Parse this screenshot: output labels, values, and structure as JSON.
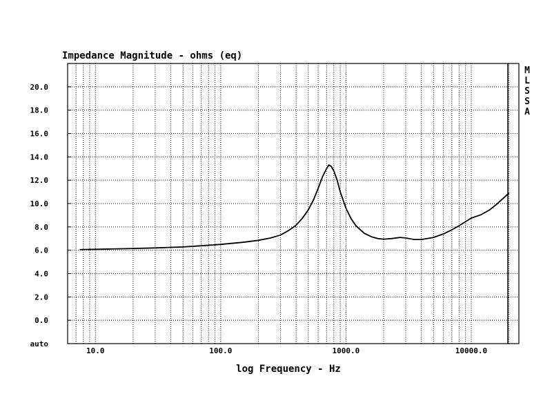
{
  "chart_data": {
    "type": "line",
    "title": "Impedance Magnitude - ohms (eq)",
    "xlabel": "log Frequency - Hz",
    "ylabel": "",
    "x_scale": "log",
    "xlim": [
      6.0,
      24000
    ],
    "ylim": [
      -2.0,
      22.0
    ],
    "grid": true,
    "y_ticks": [
      {
        "value": -2.0,
        "label": "auto"
      },
      {
        "value": 0.0,
        "label": "0.0"
      },
      {
        "value": 2.0,
        "label": "2.0"
      },
      {
        "value": 4.0,
        "label": "4.0"
      },
      {
        "value": 6.0,
        "label": "6.0"
      },
      {
        "value": 8.0,
        "label": "8.0"
      },
      {
        "value": 10.0,
        "label": "10.0"
      },
      {
        "value": 12.0,
        "label": "12.0"
      },
      {
        "value": 14.0,
        "label": "14.0"
      },
      {
        "value": 16.0,
        "label": "16.0"
      },
      {
        "value": 18.0,
        "label": "18.0"
      },
      {
        "value": 20.0,
        "label": "20.0"
      }
    ],
    "x_ticks": [
      {
        "value": 10,
        "label": "10.0"
      },
      {
        "value": 100,
        "label": "100.0"
      },
      {
        "value": 1000,
        "label": "1000.0"
      },
      {
        "value": 10000,
        "label": "10000.0"
      }
    ],
    "side_letters": [
      "M",
      "L",
      "S",
      "S",
      "A"
    ],
    "series": [
      {
        "color": "#000000",
        "points": [
          [
            7.5,
            6.05
          ],
          [
            10,
            6.08
          ],
          [
            15,
            6.12
          ],
          [
            20,
            6.15
          ],
          [
            30,
            6.2
          ],
          [
            50,
            6.28
          ],
          [
            70,
            6.38
          ],
          [
            100,
            6.5
          ],
          [
            150,
            6.68
          ],
          [
            200,
            6.85
          ],
          [
            250,
            7.05
          ],
          [
            300,
            7.3
          ],
          [
            350,
            7.7
          ],
          [
            400,
            8.15
          ],
          [
            450,
            8.75
          ],
          [
            500,
            9.45
          ],
          [
            550,
            10.3
          ],
          [
            600,
            11.3
          ],
          [
            650,
            12.3
          ],
          [
            700,
            13.0
          ],
          [
            730,
            13.3
          ],
          [
            760,
            13.2
          ],
          [
            800,
            12.8
          ],
          [
            850,
            12.0
          ],
          [
            900,
            11.0
          ],
          [
            1000,
            9.6
          ],
          [
            1100,
            8.7
          ],
          [
            1200,
            8.1
          ],
          [
            1400,
            7.45
          ],
          [
            1600,
            7.15
          ],
          [
            1800,
            7.0
          ],
          [
            2000,
            6.95
          ],
          [
            2300,
            7.0
          ],
          [
            2700,
            7.1
          ],
          [
            3000,
            7.05
          ],
          [
            3500,
            6.92
          ],
          [
            4000,
            6.92
          ],
          [
            5000,
            7.1
          ],
          [
            6000,
            7.4
          ],
          [
            7000,
            7.75
          ],
          [
            8000,
            8.1
          ],
          [
            9000,
            8.45
          ],
          [
            10000,
            8.75
          ],
          [
            12000,
            9.05
          ],
          [
            14000,
            9.45
          ],
          [
            16000,
            9.95
          ],
          [
            18000,
            10.45
          ],
          [
            20000,
            10.9
          ]
        ]
      }
    ]
  }
}
